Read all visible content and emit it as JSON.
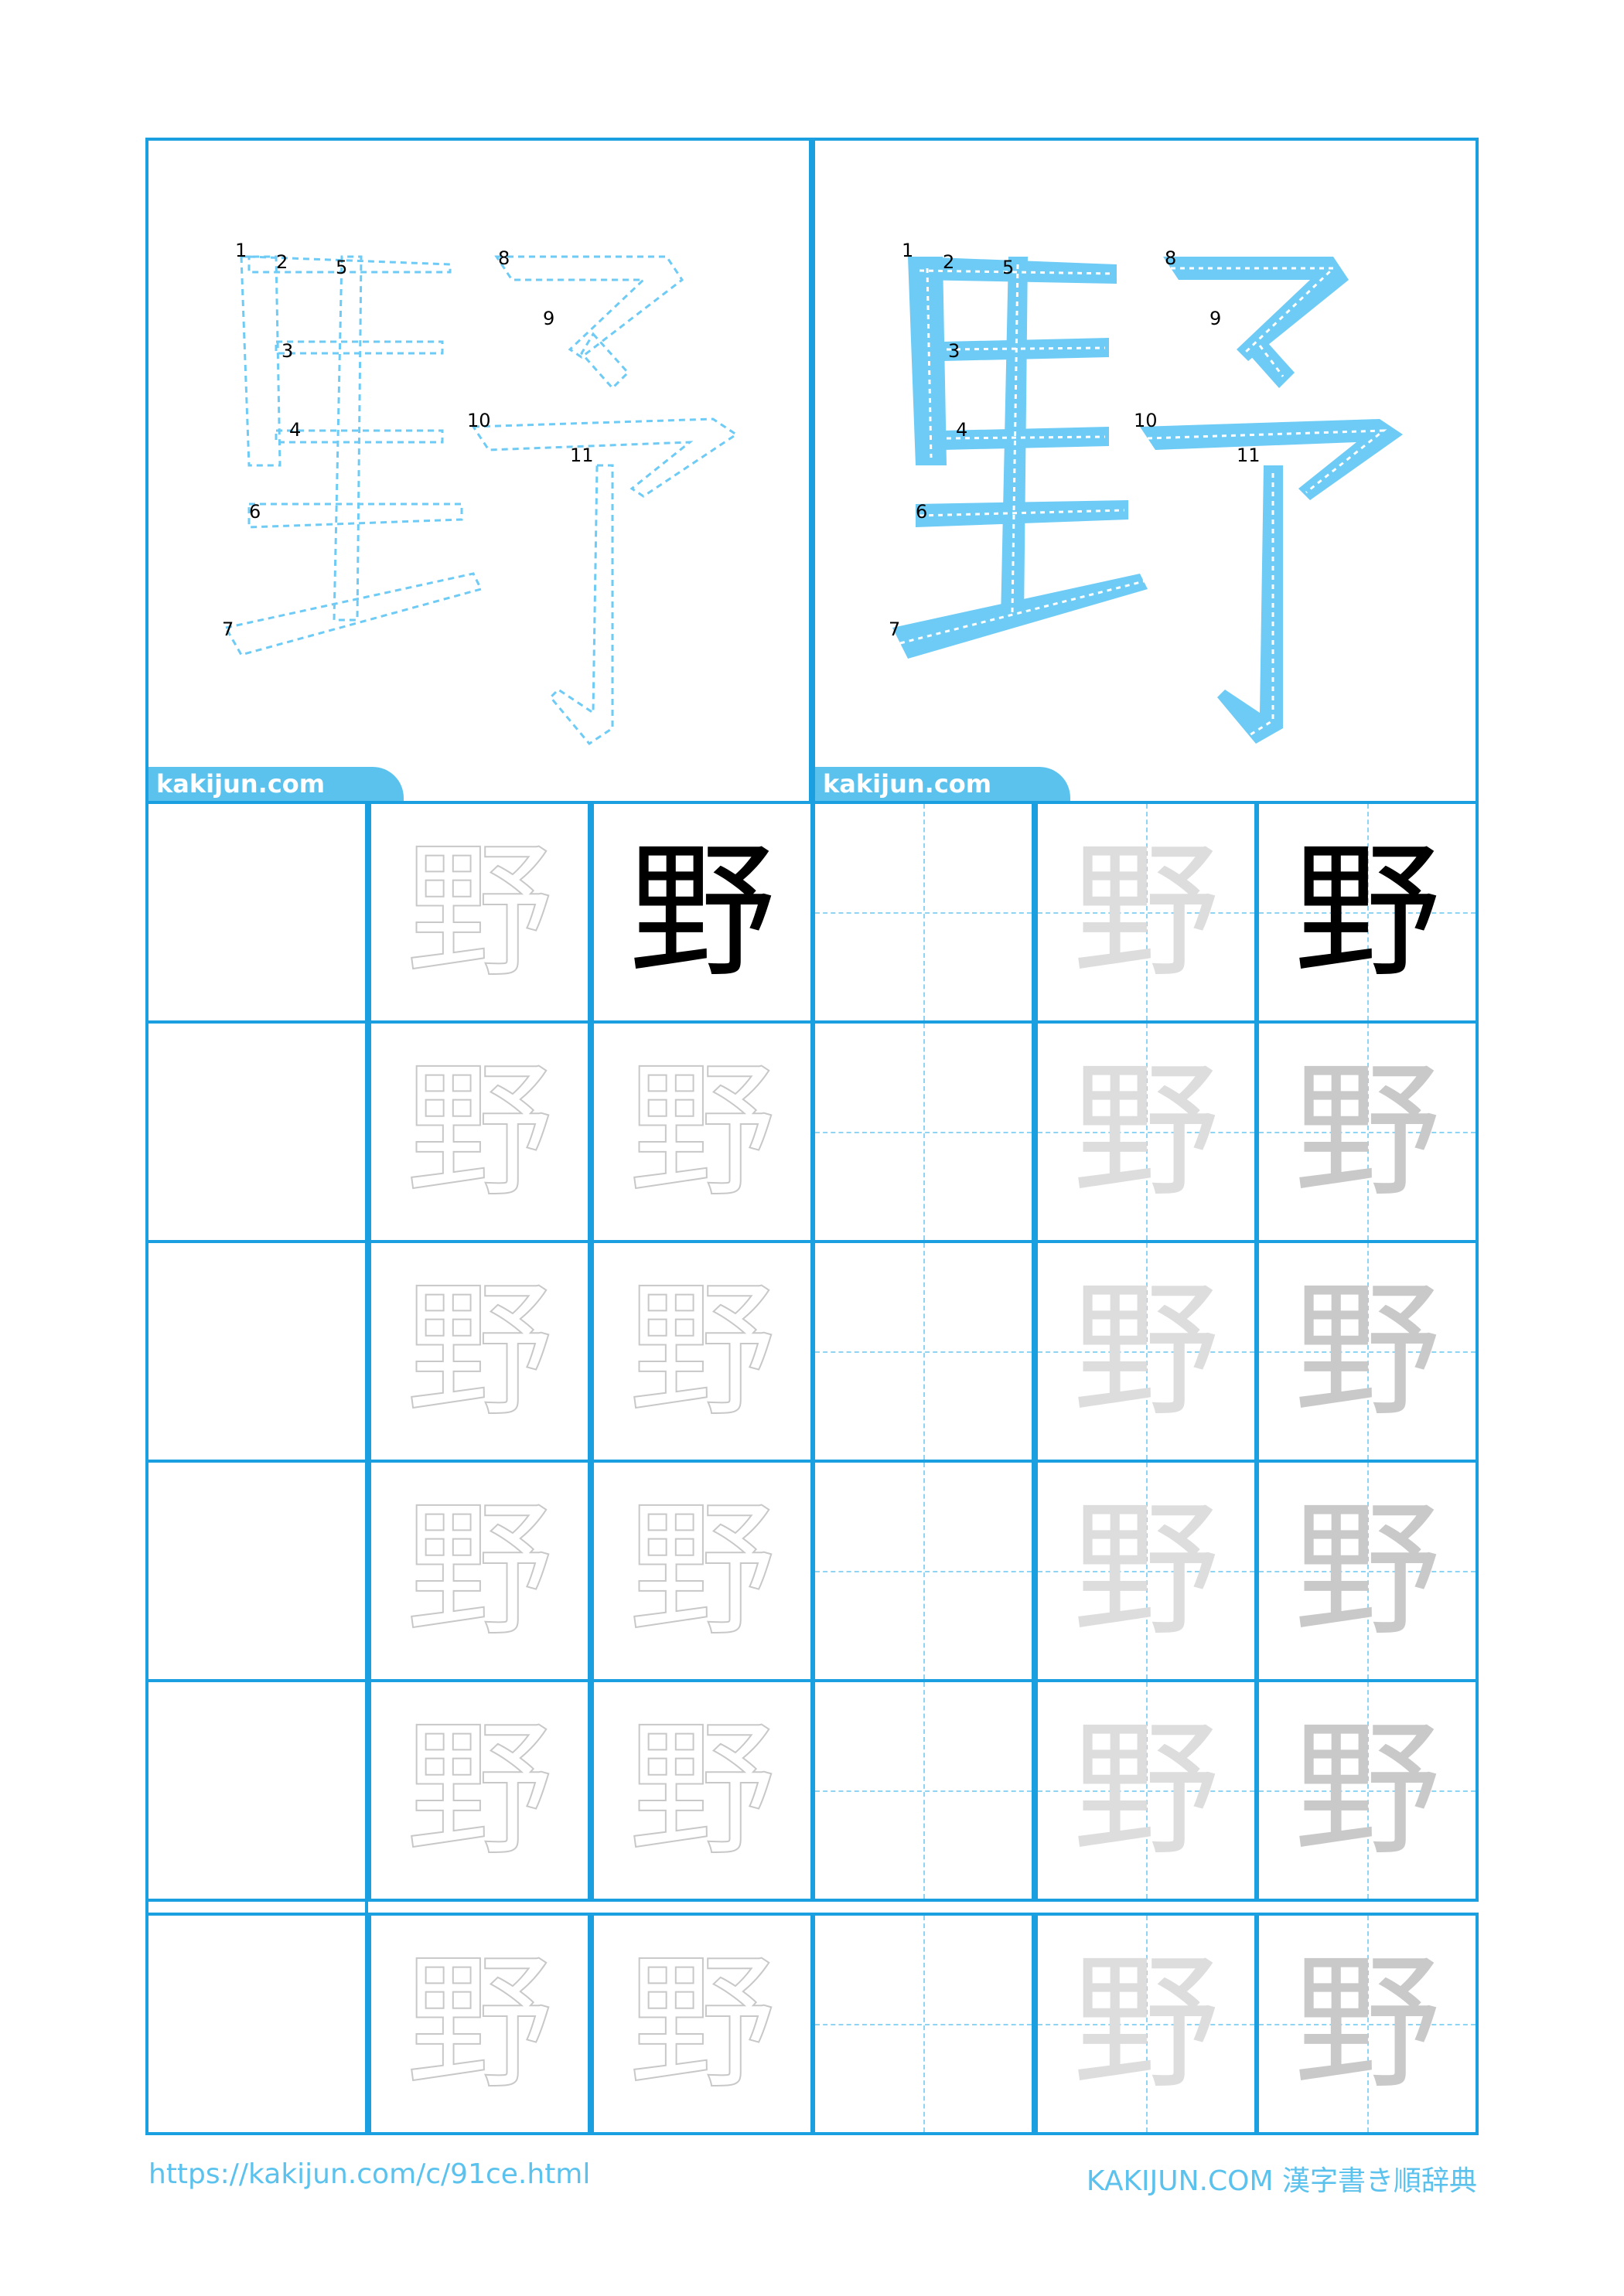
{
  "kanji": "野",
  "panels": {
    "watermark": "kakijun.com",
    "stroke_numbers": [
      "1",
      "2",
      "3",
      "4",
      "5",
      "6",
      "7",
      "8",
      "9",
      "10",
      "11"
    ]
  },
  "colors": {
    "grid": "#1aa0e0",
    "stroke_fill": "#6ecbf5",
    "guide": "#8fd4f3",
    "footer": "#5bc2ee"
  },
  "footer": {
    "url": "https://kakijun.com/c/91ce.html",
    "brand": "KAKIJUN.COM 漢字書き順辞典"
  }
}
